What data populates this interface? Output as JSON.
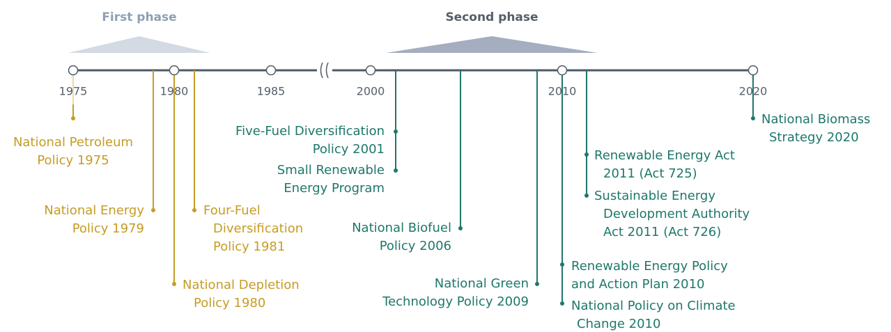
{
  "phases": [
    {
      "label": "First phase",
      "color": "#8fa0b4",
      "fill": "#d3dae3"
    },
    {
      "label": "Second phase",
      "color": "#555e6a",
      "fill": "#a4aec0"
    }
  ],
  "years": [
    "1975",
    "1980",
    "1985",
    "2000",
    "2010",
    "2020"
  ],
  "events": [
    {
      "lines": [
        "National Petroleum",
        "Policy 1975"
      ],
      "color": "#c69c24"
    },
    {
      "lines": [
        "National Energy",
        "Policy 1979"
      ],
      "color": "#c69c24"
    },
    {
      "lines": [
        "Four-Fuel",
        "Diversification",
        "Policy 1981"
      ],
      "color": "#c69c24"
    },
    {
      "lines": [
        "National Depletion",
        "Policy 1980"
      ],
      "color": "#c69c24"
    },
    {
      "lines": [
        "Five-Fuel Diversification",
        "Policy 2001"
      ],
      "color": "#1e776b"
    },
    {
      "lines": [
        "Small Renewable",
        "Energy Program"
      ],
      "color": "#1e776b"
    },
    {
      "lines": [
        "National Biofuel",
        "Policy 2006"
      ],
      "color": "#1e776b"
    },
    {
      "lines": [
        "National Green",
        "Technology Policy 2009"
      ],
      "color": "#1e776b"
    },
    {
      "lines": [
        "Renewable Energy Policy",
        "and Action Plan 2010"
      ],
      "color": "#1e776b"
    },
    {
      "lines": [
        "National Policy on Climate",
        "Change 2010"
      ],
      "color": "#1e776b"
    },
    {
      "lines": [
        "Renewable Energy Act",
        "2011 (Act 725)"
      ],
      "color": "#1e776b"
    },
    {
      "lines": [
        "Sustainable Energy",
        "Development Authority",
        "Act 2011 (Act 726)"
      ],
      "color": "#1e776b"
    },
    {
      "lines": [
        "National Biomass",
        "Strategy 2020"
      ],
      "color": "#1e776b"
    }
  ]
}
